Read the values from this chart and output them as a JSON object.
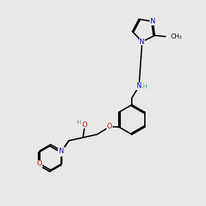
{
  "bg_color": "#e8e8e8",
  "bond_color": "#000000",
  "N_color": "#0000cd",
  "O_color": "#cc0000",
  "H_color": "#5f9ea0",
  "figsize": [
    3.0,
    3.0
  ],
  "dpi": 100,
  "xlim": [
    0,
    10
  ],
  "ylim": [
    0,
    10
  ]
}
